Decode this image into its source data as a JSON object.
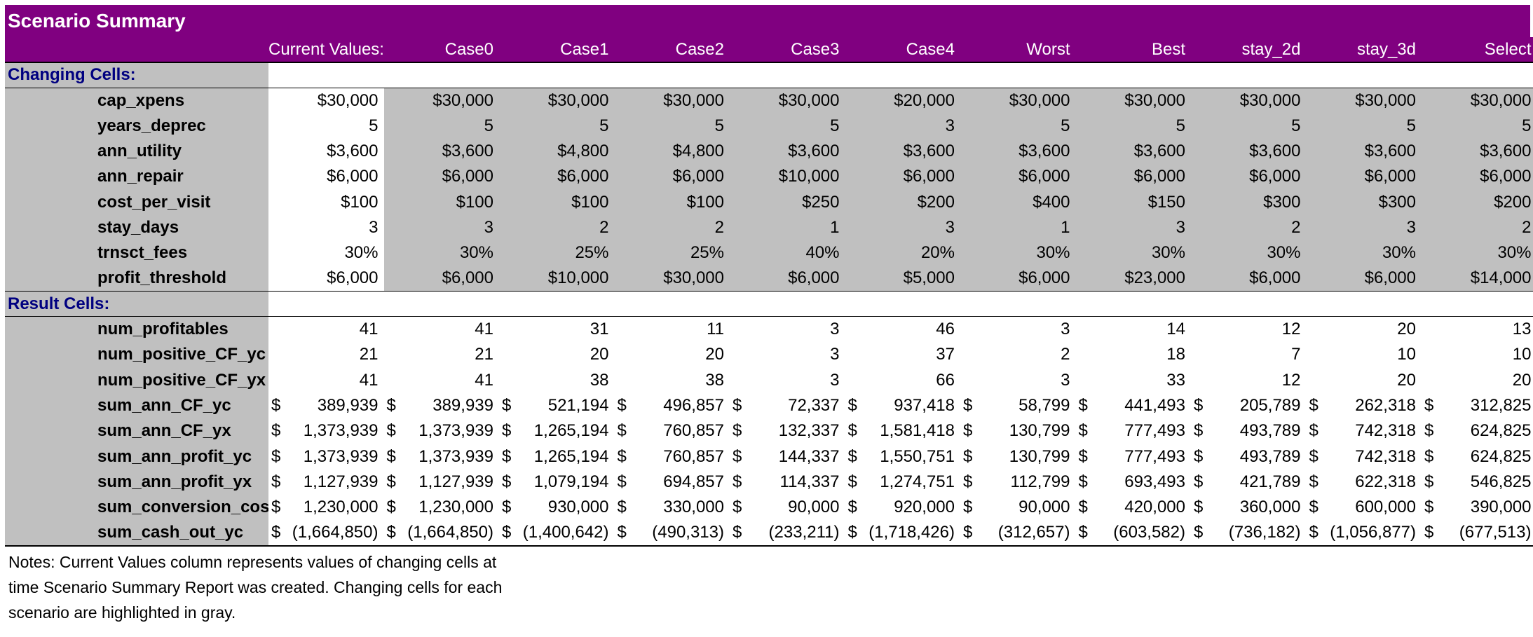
{
  "title": "Scenario Summary",
  "columns": [
    "Current Values:",
    "Case0",
    "Case1",
    "Case2",
    "Case3",
    "Case4",
    "Worst",
    "Best",
    "stay_2d",
    "stay_3d",
    "Select"
  ],
  "changing_label": "Changing Cells:",
  "changing_rows": [
    {
      "label": "cap_xpens",
      "values": [
        "$30,000",
        "$30,000",
        "$30,000",
        "$30,000",
        "$30,000",
        "$20,000",
        "$30,000",
        "$30,000",
        "$30,000",
        "$30,000",
        "$30,000"
      ]
    },
    {
      "label": "years_deprec",
      "values": [
        "5",
        "5",
        "5",
        "5",
        "5",
        "3",
        "5",
        "5",
        "5",
        "5",
        "5"
      ]
    },
    {
      "label": "ann_utility",
      "values": [
        "$3,600",
        "$3,600",
        "$4,800",
        "$4,800",
        "$3,600",
        "$3,600",
        "$3,600",
        "$3,600",
        "$3,600",
        "$3,600",
        "$3,600"
      ]
    },
    {
      "label": "ann_repair",
      "values": [
        "$6,000",
        "$6,000",
        "$6,000",
        "$6,000",
        "$10,000",
        "$6,000",
        "$6,000",
        "$6,000",
        "$6,000",
        "$6,000",
        "$6,000"
      ]
    },
    {
      "label": "cost_per_visit",
      "values": [
        "$100",
        "$100",
        "$100",
        "$100",
        "$250",
        "$200",
        "$400",
        "$150",
        "$300",
        "$300",
        "$200"
      ]
    },
    {
      "label": "stay_days",
      "values": [
        "3",
        "3",
        "2",
        "2",
        "1",
        "3",
        "1",
        "3",
        "2",
        "3",
        "2"
      ]
    },
    {
      "label": "trnsct_fees",
      "values": [
        "30%",
        "30%",
        "25%",
        "25%",
        "40%",
        "20%",
        "30%",
        "30%",
        "30%",
        "30%",
        "30%"
      ]
    },
    {
      "label": "profit_threshold",
      "values": [
        "$6,000",
        "$6,000",
        "$10,000",
        "$30,000",
        "$6,000",
        "$5,000",
        "$6,000",
        "$23,000",
        "$6,000",
        "$6,000",
        "$14,000"
      ]
    }
  ],
  "result_label": "Result Cells:",
  "result_rows": [
    {
      "label": "num_profitables",
      "values": [
        "41",
        "41",
        "31",
        "11",
        "3",
        "46",
        "3",
        "14",
        "12",
        "20",
        "13"
      ]
    },
    {
      "label": "num_positive_CF_yc",
      "values": [
        "21",
        "21",
        "20",
        "20",
        "3",
        "37",
        "2",
        "18",
        "7",
        "10",
        "10"
      ]
    },
    {
      "label": "num_positive_CF_yx",
      "values": [
        "41",
        "41",
        "38",
        "38",
        "3",
        "66",
        "3",
        "33",
        "12",
        "20",
        "20"
      ]
    }
  ],
  "currency_symbol": "$",
  "currency_rows": [
    {
      "label": "sum_ann_CF_yc",
      "values": [
        "389,939",
        "389,939",
        "521,194",
        "496,857",
        "72,337",
        "937,418",
        "58,799",
        "441,493",
        "205,789",
        "262,318",
        "312,825"
      ]
    },
    {
      "label": "sum_ann_CF_yx",
      "values": [
        "1,373,939",
        "1,373,939",
        "1,265,194",
        "760,857",
        "132,337",
        "1,581,418",
        "130,799",
        "777,493",
        "493,789",
        "742,318",
        "624,825"
      ]
    },
    {
      "label": "sum_ann_profit_yc",
      "values": [
        "1,373,939",
        "1,373,939",
        "1,265,194",
        "760,857",
        "144,337",
        "1,550,751",
        "130,799",
        "777,493",
        "493,789",
        "742,318",
        "624,825"
      ]
    },
    {
      "label": "sum_ann_profit_yx",
      "values": [
        "1,127,939",
        "1,127,939",
        "1,079,194",
        "694,857",
        "114,337",
        "1,274,751",
        "112,799",
        "693,493",
        "421,789",
        "622,318",
        "546,825"
      ]
    },
    {
      "label": "sum_conversion_cost",
      "values": [
        "1,230,000",
        "1,230,000",
        "930,000",
        "330,000",
        "90,000",
        "920,000",
        "90,000",
        "420,000",
        "360,000",
        "600,000",
        "390,000"
      ]
    },
    {
      "label": "sum_cash_out_yc",
      "values": [
        "(1,664,850)",
        "(1,664,850)",
        "(1,400,642)",
        "(490,313)",
        "(233,211)",
        "(1,718,426)",
        "(312,657)",
        "(603,582)",
        "(736,182)",
        "(1,056,877)",
        "(677,513)"
      ]
    }
  ],
  "notes": [
    "Notes:  Current Values column represents values of changing cells at",
    "time Scenario Summary Report was created.  Changing cells for each",
    "scenario are highlighted in gray."
  ],
  "colors": {
    "header": "#800080",
    "gray": "#c0c0c0",
    "section_text": "#000080"
  }
}
